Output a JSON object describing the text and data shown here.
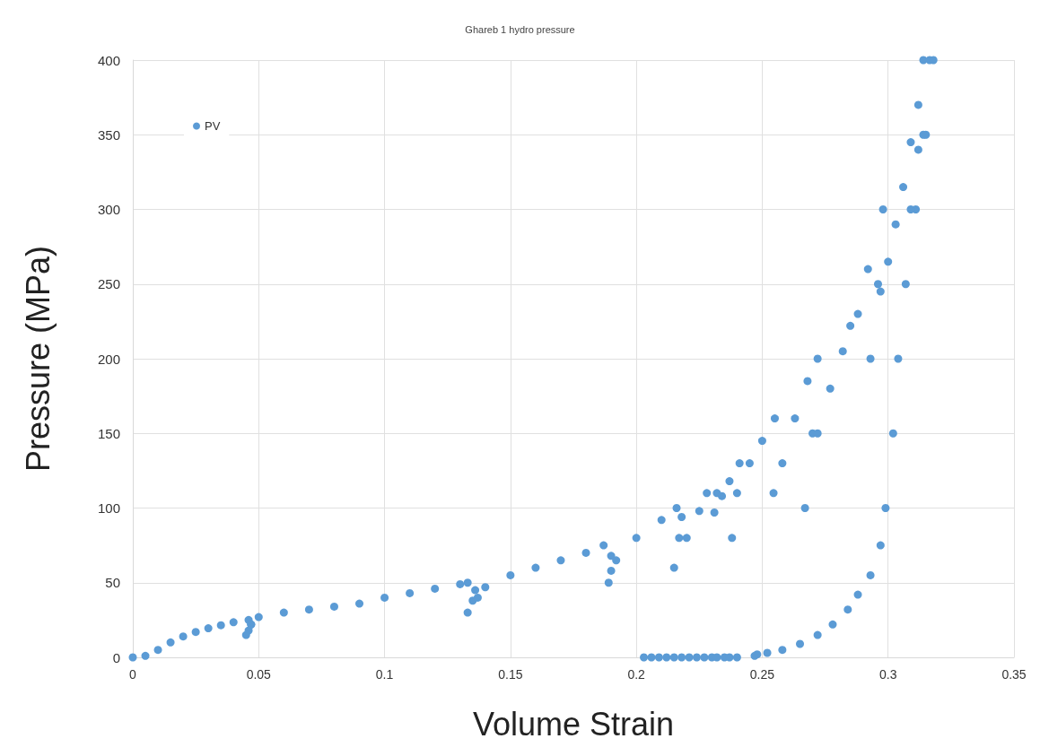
{
  "chart_data": {
    "type": "scatter",
    "title": "Ghareb 1 hydro pressure",
    "xlabel": "Volume Strain",
    "ylabel": "Pressure (MPa)",
    "xlim": [
      0,
      0.35
    ],
    "xticks": [
      0,
      0.05,
      0.1,
      0.15,
      0.2,
      0.25,
      0.3,
      0.35
    ],
    "ylim": [
      0,
      400
    ],
    "yticks": [
      0,
      50,
      100,
      150,
      200,
      250,
      300,
      350,
      400
    ],
    "grid": true,
    "legend": "top left",
    "marker": "circle",
    "series": [
      {
        "name": "PV",
        "color": "#5b9bd5",
        "x": [
          0,
          0.005,
          0.01,
          0.015,
          0.02,
          0.025,
          0.03,
          0.035,
          0.04,
          0.046,
          0.047,
          0.046,
          0.045,
          0.047,
          0.05,
          0.06,
          0.07,
          0.08,
          0.09,
          0.1,
          0.11,
          0.12,
          0.13,
          0.133,
          0.136,
          0.135,
          0.133,
          0.137,
          0.14,
          0.15,
          0.16,
          0.17,
          0.18,
          0.187,
          0.19,
          0.19,
          0.189,
          0.192,
          0.2,
          0.21,
          0.216,
          0.218,
          0.217,
          0.215,
          0.22,
          0.225,
          0.228,
          0.232,
          0.231,
          0.234,
          0.237,
          0.241,
          0.24,
          0.238,
          0.245,
          0.25,
          0.255,
          0.2545,
          0.258,
          0.263,
          0.268,
          0.272,
          0.27,
          0.267,
          0.272,
          0.277,
          0.282,
          0.285,
          0.288,
          0.292,
          0.298,
          0.296,
          0.293,
          0.297,
          0.3,
          0.303,
          0.306,
          0.309,
          0.312,
          0.314,
          0.312,
          0.311,
          0.315,
          0.3165,
          0.318,
          0.314,
          0.309,
          0.307,
          0.304,
          0.302,
          0.299,
          0.297,
          0.293,
          0.288,
          0.284,
          0.278,
          0.272,
          0.265,
          0.258,
          0.252,
          0.248,
          0.247,
          0.203,
          0.206,
          0.209,
          0.212,
          0.215,
          0.218,
          0.221,
          0.224,
          0.227,
          0.23,
          0.232,
          0.235,
          0.237,
          0.24
        ],
        "values": [
          0,
          1,
          5,
          10,
          14,
          17,
          19.5,
          21.5,
          23.5,
          25,
          22,
          18,
          15,
          22,
          27,
          30,
          32,
          34,
          36,
          40,
          43,
          46,
          49,
          50,
          45,
          38,
          30,
          40,
          47,
          55,
          60,
          65,
          70,
          75,
          68,
          58,
          50,
          65,
          80,
          92,
          100,
          94,
          80,
          60,
          80,
          98,
          110,
          110,
          97,
          108,
          118,
          130,
          110,
          80,
          130,
          145,
          160,
          110,
          130,
          160,
          185,
          200,
          150,
          100,
          150,
          180,
          205,
          222,
          230,
          260,
          300,
          250,
          200,
          245,
          265,
          290,
          315,
          345,
          370,
          400,
          340,
          300,
          350,
          400,
          400,
          350,
          300,
          250,
          200,
          150,
          100,
          75,
          55,
          42,
          32,
          22,
          15,
          9,
          5,
          3,
          2,
          1,
          0,
          0,
          0,
          0,
          0,
          0,
          0,
          0,
          0,
          0,
          0,
          0,
          0,
          0
        ]
      }
    ]
  }
}
